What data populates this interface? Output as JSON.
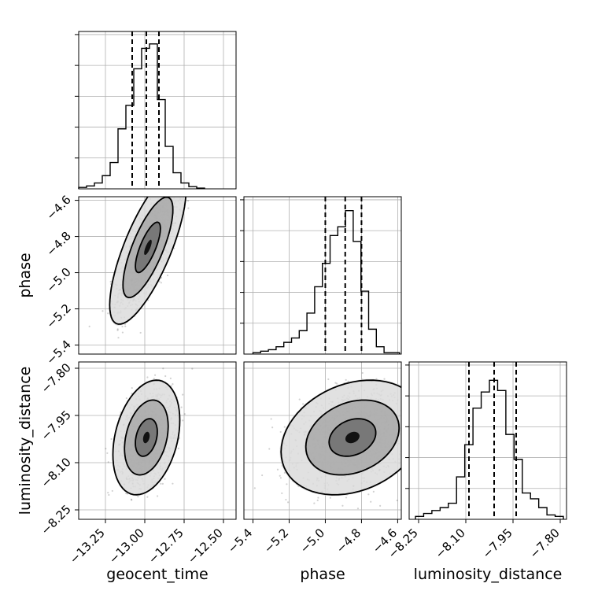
{
  "chart_data": {
    "type": "corner",
    "parameters": [
      {
        "name": "geocent_time",
        "ticks": [
          -13.25,
          -13.0,
          -12.75,
          -12.5
        ],
        "tick_labels": [
          "−13.25",
          "−13.00",
          "−12.75",
          "−12.50"
        ],
        "range": [
          -13.42,
          -12.42
        ],
        "hist_bins": [
          0.01,
          0.02,
          0.04,
          0.09,
          0.18,
          0.41,
          0.57,
          0.82,
          0.96,
          0.99,
          0.61,
          0.29,
          0.11,
          0.04,
          0.015,
          0.005
        ],
        "hist_range": [
          -13.42,
          -12.62
        ],
        "quantiles": [
          -13.08,
          -12.99,
          -12.91
        ]
      },
      {
        "name": "phase",
        "ticks": [
          -5.4,
          -5.2,
          -5.0,
          -4.8,
          -4.6
        ],
        "tick_labels": [
          "−5.4",
          "−5.2",
          "−5.0",
          "−4.8",
          "−4.6"
        ],
        "range": [
          -5.45,
          -4.58
        ],
        "hist_bins": [
          0.01,
          0.02,
          0.03,
          0.05,
          0.08,
          0.11,
          0.16,
          0.28,
          0.46,
          0.62,
          0.81,
          0.87,
          0.98,
          0.77,
          0.43,
          0.17,
          0.05,
          0.01,
          0.01
        ],
        "hist_range": [
          -5.4,
          -4.59
        ],
        "quantiles": [
          -5.0,
          -4.89,
          -4.8
        ]
      },
      {
        "name": "luminosity_distance",
        "ticks": [
          -8.25,
          -8.1,
          -7.95,
          -7.8
        ],
        "tick_labels": [
          "−8.25",
          "−8.10",
          "−7.95",
          "−7.80"
        ],
        "range": [
          -8.28,
          -7.78
        ],
        "hist_bins": [
          0.02,
          0.04,
          0.06,
          0.08,
          0.11,
          0.29,
          0.51,
          0.76,
          0.87,
          0.95,
          0.88,
          0.58,
          0.41,
          0.18,
          0.14,
          0.08,
          0.03,
          0.02
        ],
        "hist_range": [
          -8.26,
          -7.79
        ],
        "quantiles": [
          -8.09,
          -8.01,
          -7.94
        ]
      }
    ],
    "pairs": [
      {
        "x": "geocent_time",
        "y": "phase",
        "center": [
          -12.98,
          -4.86
        ],
        "sigma": [
          0.08,
          0.14
        ],
        "correlation": 0.75,
        "contour_levels": [
          0.39,
          0.86,
          0.99
        ]
      },
      {
        "x": "geocent_time",
        "y": "luminosity_distance",
        "center": [
          -12.99,
          -8.02
        ],
        "sigma": [
          0.07,
          0.06
        ],
        "correlation": 0.3,
        "contour_levels": [
          0.39,
          0.86,
          0.99
        ]
      },
      {
        "x": "phase",
        "y": "luminosity_distance",
        "center": [
          -4.85,
          -8.02
        ],
        "sigma": [
          0.13,
          0.06
        ],
        "correlation": 0.25,
        "contour_levels": [
          0.39,
          0.86,
          0.99
        ]
      }
    ],
    "grid": true
  }
}
